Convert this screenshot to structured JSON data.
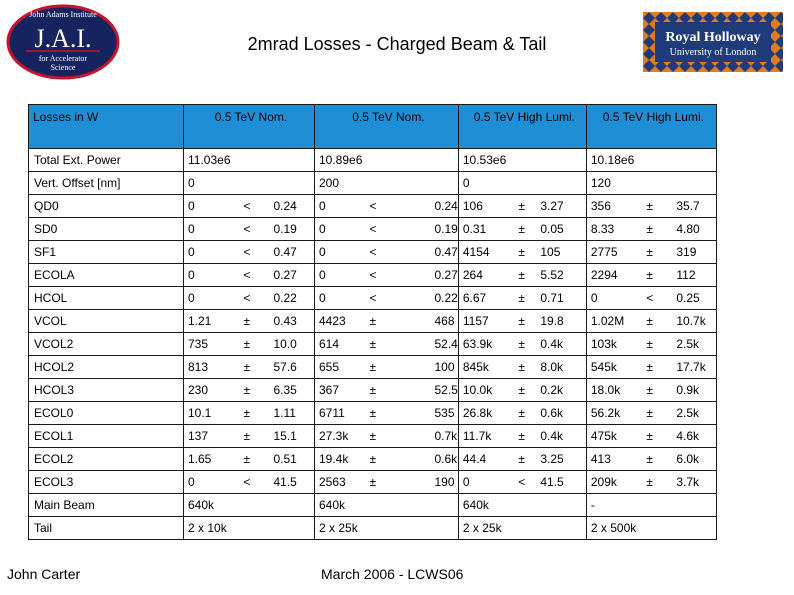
{
  "header": {
    "title": "2mrad Losses - Charged Beam & Tail",
    "jai_logo": {
      "line1": "John Adams Institute",
      "mark": "J.A.I.",
      "line2": "for Accelerator",
      "line3": "Science"
    },
    "rhul_logo": {
      "line1": "Royal Holloway",
      "line2": "University of London"
    }
  },
  "footer": {
    "author": "John Carter",
    "event": "March 2006 - LCWS06"
  },
  "colors": {
    "header_bg": "#1e8fd6",
    "jai_navy": "#15235f",
    "jai_red": "#c4162a",
    "rhul_blue": "#1f3b7a",
    "rhul_orange": "#e07b1f"
  },
  "table": {
    "headers": [
      "Losses in W",
      "0.5 TeV Nom.",
      "0.5 TeV Nom.",
      "0.5 TeV High Lumi.",
      "0.5 TeV High Lumi."
    ],
    "rows": [
      {
        "label": "Total Ext. Power",
        "cols": [
          [
            "11.03e6"
          ],
          [
            "10.89e6"
          ],
          [
            "10.53e6"
          ],
          [
            "10.18e6"
          ]
        ]
      },
      {
        "label": "Vert. Offset [nm]",
        "cols": [
          [
            "0"
          ],
          [
            "200"
          ],
          [
            "0"
          ],
          [
            "120"
          ]
        ]
      },
      {
        "label": "QD0",
        "cols": [
          [
            "0",
            "<",
            "0.24"
          ],
          [
            "0",
            "<",
            "0.24"
          ],
          [
            "106",
            "±",
            "3.27"
          ],
          [
            "356",
            "±",
            "35.7"
          ]
        ]
      },
      {
        "label": "SD0",
        "cols": [
          [
            "0",
            "<",
            "0.19"
          ],
          [
            "0",
            "<",
            "0.19"
          ],
          [
            "0.31",
            "±",
            "0.05"
          ],
          [
            "8.33",
            "±",
            "4.80"
          ]
        ]
      },
      {
        "label": "SF1",
        "cols": [
          [
            "0",
            "<",
            "0.47"
          ],
          [
            "0",
            "<",
            "0.47"
          ],
          [
            "4154",
            "±",
            "105"
          ],
          [
            "2775",
            "±",
            "319"
          ]
        ]
      },
      {
        "label": "ECOLA",
        "cols": [
          [
            "0",
            "<",
            "0.27"
          ],
          [
            "0",
            "<",
            "0.27"
          ],
          [
            "264",
            "±",
            "5.52"
          ],
          [
            "2294",
            "±",
            "112"
          ]
        ]
      },
      {
        "label": "HCOL",
        "cols": [
          [
            "0",
            "<",
            "0.22"
          ],
          [
            "0",
            "<",
            "0.22"
          ],
          [
            "6.67",
            "±",
            "0.71"
          ],
          [
            "0",
            "<",
            "0.25"
          ]
        ]
      },
      {
        "label": "VCOL",
        "cols": [
          [
            "1.21",
            "±",
            "0.43"
          ],
          [
            "4423",
            "±",
            "468"
          ],
          [
            "1157",
            "±",
            "19.8"
          ],
          [
            "1.02M",
            "±",
            "10.7k"
          ]
        ]
      },
      {
        "label": "VCOL2",
        "cols": [
          [
            "735",
            "±",
            "10.0"
          ],
          [
            "614",
            "±",
            "52.4"
          ],
          [
            "63.9k",
            "±",
            "0.4k"
          ],
          [
            "103k",
            "±",
            "2.5k"
          ]
        ]
      },
      {
        "label": "HCOL2",
        "cols": [
          [
            "813",
            "±",
            "57.6"
          ],
          [
            "655",
            "±",
            "100"
          ],
          [
            "845k",
            "±",
            "8.0k"
          ],
          [
            "545k",
            "±",
            "17.7k"
          ]
        ]
      },
      {
        "label": "HCOL3",
        "cols": [
          [
            "230",
            "±",
            "6.35"
          ],
          [
            "367",
            "±",
            "52.5"
          ],
          [
            "10.0k",
            "±",
            "0.2k"
          ],
          [
            "18.0k",
            "±",
            "0.9k"
          ]
        ]
      },
      {
        "label": "ECOL0",
        "cols": [
          [
            "10.1",
            "±",
            "1.11"
          ],
          [
            "6711",
            "±",
            "535"
          ],
          [
            "26.8k",
            "±",
            "0.6k"
          ],
          [
            "56.2k",
            "±",
            "2.5k"
          ]
        ]
      },
      {
        "label": "ECOL1",
        "cols": [
          [
            "137",
            "±",
            "15.1"
          ],
          [
            "27.3k",
            "±",
            "0.7k"
          ],
          [
            "11.7k",
            "±",
            "0.4k"
          ],
          [
            "475k",
            "±",
            "4.6k"
          ]
        ]
      },
      {
        "label": "ECOL2",
        "cols": [
          [
            "1.65",
            "±",
            "0.51"
          ],
          [
            "19.4k",
            "±",
            "0.6k"
          ],
          [
            "44.4",
            "±",
            "3.25"
          ],
          [
            "413",
            "±",
            "6.0k"
          ]
        ]
      },
      {
        "label": "ECOL3",
        "cols": [
          [
            "0",
            "<",
            "41.5"
          ],
          [
            "2563",
            "±",
            "190"
          ],
          [
            "0",
            "<",
            "41.5"
          ],
          [
            "209k",
            "±",
            "3.7k"
          ]
        ]
      },
      {
        "label": "Main Beam",
        "cols": [
          [
            "640k"
          ],
          [
            "640k"
          ],
          [
            "640k"
          ],
          [
            "-"
          ]
        ]
      },
      {
        "label": "Tail",
        "cols": [
          [
            "2 x 10k"
          ],
          [
            "2 x 25k"
          ],
          [
            "2 x 25k"
          ],
          [
            "2 x 500k"
          ]
        ]
      }
    ]
  }
}
